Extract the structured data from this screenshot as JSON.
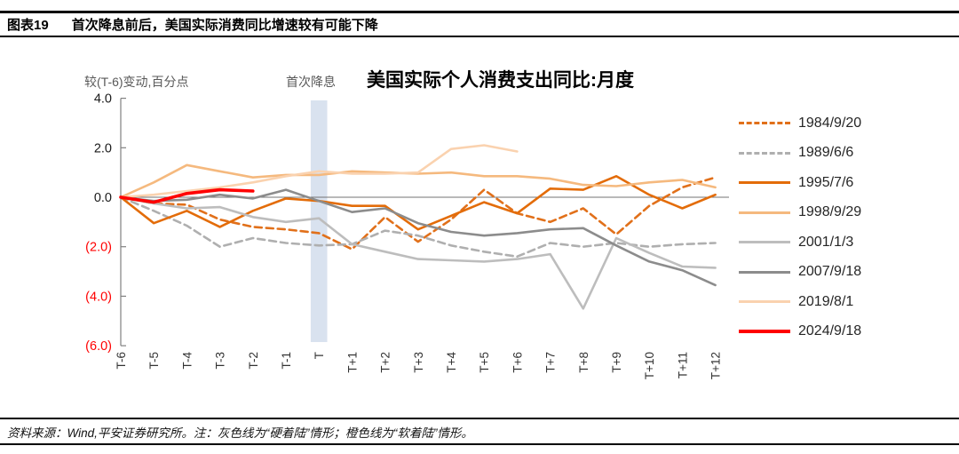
{
  "header": {
    "tag": "图表19",
    "title": "首次降息前后，美国实际消费同比增速较有可能下降"
  },
  "chart": {
    "title": "美国实际个人消费支出同比:月度",
    "y_unit_label": "较(T-6)变动,百分点",
    "event_label": "首次降息"
  },
  "footer": {
    "text": "资料来源：Wind,平安证券研究所。注：灰色线为“硬着陆”情形；橙色线为“软着陆”情形。"
  },
  "chart_data": {
    "type": "line",
    "title": "美国实际个人消费支出同比:月度",
    "ylabel": "较(T-6)变动,百分点",
    "ylim": [
      -6.0,
      4.0
    ],
    "grid": false,
    "legend_position": "right",
    "zero_line": true,
    "negative_tick_color": "#ff0000",
    "categories": [
      "T-6",
      "T-5",
      "T-4",
      "T-3",
      "T-2",
      "T-1",
      "T",
      "T+1",
      "T+2",
      "T+3",
      "T+4",
      "T+5",
      "T+6",
      "T+7",
      "T+8",
      "T+9",
      "T+10",
      "T+11",
      "T+12"
    ],
    "y_ticks": [
      {
        "label": "4.0",
        "value": 4,
        "color": "#1a1a1a"
      },
      {
        "label": "2.0",
        "value": 2,
        "color": "#1a1a1a"
      },
      {
        "label": "0.0",
        "value": 0,
        "color": "#1a1a1a"
      },
      {
        "label": "(2.0)",
        "value": -2,
        "color": "#ff0000"
      },
      {
        "label": "(4.0)",
        "value": -4,
        "color": "#ff0000"
      },
      {
        "label": "(6.0)",
        "value": -6,
        "color": "#ff0000"
      }
    ],
    "event_band": {
      "label": "首次降息",
      "category": "T",
      "color": "#D9E2EF"
    },
    "series": [
      {
        "name": "1984/9/20",
        "color": "#E1701A",
        "dash": true,
        "width": 2.6,
        "values": [
          0,
          -0.25,
          -0.3,
          -0.9,
          -1.2,
          -1.3,
          -1.45,
          -2.1,
          -0.8,
          -1.8,
          -0.9,
          0.3,
          -0.65,
          -1.0,
          -0.45,
          -1.5,
          -0.35,
          0.4,
          0.8
        ]
      },
      {
        "name": "1989/6/6",
        "color": "#AFAFAF",
        "dash": true,
        "width": 2.6,
        "values": [
          0,
          -0.55,
          -1.15,
          -2.0,
          -1.65,
          -1.85,
          -1.95,
          -1.9,
          -1.35,
          -1.55,
          -1.95,
          -2.2,
          -2.4,
          -1.85,
          -2.0,
          -1.85,
          -2.0,
          -1.9,
          -1.85
        ]
      },
      {
        "name": "1995/7/6",
        "color": "#E36C09",
        "dash": false,
        "width": 2.6,
        "values": [
          0,
          -1.05,
          -0.55,
          -1.2,
          -0.55,
          -0.05,
          -0.15,
          -0.35,
          -0.35,
          -1.3,
          -0.75,
          -0.2,
          -0.65,
          0.35,
          0.3,
          0.85,
          0.1,
          -0.45,
          0.1
        ]
      },
      {
        "name": "1998/9/29",
        "color": "#F5B97E",
        "dash": false,
        "width": 2.6,
        "values": [
          0,
          0.6,
          1.3,
          1.05,
          0.8,
          0.9,
          0.9,
          1.05,
          1.0,
          0.95,
          1.0,
          0.85,
          0.85,
          0.75,
          0.5,
          0.45,
          0.6,
          0.7,
          0.4
        ]
      },
      {
        "name": "2001/1/3",
        "color": "#BDBDBD",
        "dash": false,
        "width": 2.6,
        "values": [
          0,
          -0.25,
          -0.45,
          -0.4,
          -0.8,
          -1.0,
          -0.85,
          -1.9,
          -2.2,
          -2.5,
          -2.55,
          -2.6,
          -2.5,
          -2.3,
          -4.5,
          -1.65,
          -2.25,
          -2.8,
          -2.85
        ]
      },
      {
        "name": "2007/9/18",
        "color": "#8C8C8C",
        "dash": false,
        "width": 2.6,
        "values": [
          0,
          -0.15,
          -0.1,
          0.1,
          -0.05,
          0.3,
          -0.15,
          -0.6,
          -0.45,
          -1.05,
          -1.4,
          -1.55,
          -1.45,
          -1.3,
          -1.25,
          -1.95,
          -2.6,
          -2.95,
          -3.55
        ]
      },
      {
        "name": "2019/8/1",
        "color": "#FAD2AF",
        "dash": false,
        "width": 2.6,
        "values": [
          0,
          0.1,
          0.25,
          0.4,
          0.6,
          0.85,
          1.05,
          0.95,
          0.95,
          1.0,
          1.95,
          2.1,
          1.85
        ]
      },
      {
        "name": "2024/9/18",
        "color": "#FF0000",
        "dash": false,
        "width": 3.6,
        "values": [
          0,
          -0.2,
          0.15,
          0.3,
          0.25
        ]
      }
    ]
  }
}
